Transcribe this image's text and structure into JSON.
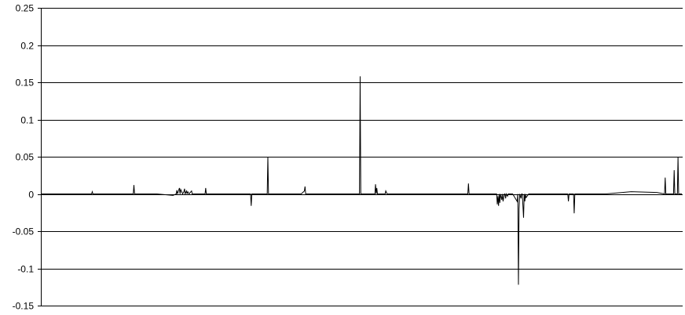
{
  "chart_data": {
    "type": "line",
    "title": "",
    "xlabel": "",
    "ylabel": "",
    "ylim": [
      -0.15,
      0.25
    ],
    "yticks": [
      -0.15,
      -0.1,
      -0.05,
      0,
      0.05,
      0.1,
      0.15,
      0.2,
      0.25
    ],
    "ytick_labels": [
      "-0.15",
      "-0.1",
      "-0.05",
      "0",
      "0.05",
      "0.1",
      "0.15",
      "0.2",
      "0.25"
    ],
    "grid": true,
    "legend": "none",
    "x_count": 1000,
    "series": [
      {
        "color": "#000000",
        "x": [
          0,
          78,
          79,
          80,
          143,
          144,
          145,
          180,
          205,
          210,
          211,
          212,
          215,
          216,
          217,
          220,
          222,
          223,
          224,
          226,
          227,
          228,
          230,
          234,
          235,
          240,
          255,
          256,
          257,
          258,
          265,
          310,
          326,
          327,
          328,
          352,
          353,
          354,
          355,
          405,
          410,
          411,
          412,
          425,
          496,
          497,
          498,
          499,
          520,
          521,
          522,
          523,
          524,
          525,
          536,
          537,
          539,
          540,
          665,
          666,
          667,
          710,
          711,
          712,
          713,
          714,
          715,
          716,
          718,
          719,
          720,
          722,
          723,
          724,
          725,
          727,
          728,
          729,
          735,
          742,
          743,
          744,
          745,
          746,
          748,
          749,
          750,
          752,
          753,
          754,
          755,
          756,
          760,
          780,
          820,
          821,
          822,
          823,
          830,
          831,
          832,
          833,
          880,
          920,
          960,
          972,
          973,
          974,
          975,
          986,
          987,
          988,
          992,
          993,
          994,
          999
        ],
        "y": [
          0.0,
          0.0,
          0.003,
          0.0,
          0.0,
          0.012,
          0.0,
          0.0,
          -0.002,
          0.0,
          0.005,
          0.0,
          0.008,
          0.0,
          0.006,
          0.0,
          0.003,
          0.007,
          0.0,
          0.004,
          0.0,
          0.003,
          0.0,
          0.004,
          0.0,
          0.0,
          0.0,
          0.008,
          0.0,
          0.0,
          0.0,
          0.0,
          0.0,
          -0.016,
          0.0,
          0.0,
          0.05,
          0.0,
          0.0,
          0.0,
          0.004,
          0.01,
          0.0,
          0.0,
          0.0,
          0.158,
          0.0,
          0.0,
          0.0,
          0.013,
          0.0,
          0.008,
          0.0,
          0.0,
          0.0,
          0.004,
          0.0,
          0.0,
          0.0,
          0.014,
          0.0,
          0.0,
          -0.014,
          -0.003,
          -0.016,
          0.0,
          -0.012,
          0.0,
          -0.008,
          0.0,
          -0.01,
          0.0,
          0.0,
          -0.006,
          0.0,
          -0.003,
          0.0,
          0.0,
          0.0,
          -0.01,
          0.0,
          -0.122,
          -0.02,
          0.0,
          -0.006,
          0.0,
          0.0,
          -0.032,
          0.0,
          -0.01,
          0.0,
          -0.005,
          0.0,
          0.0,
          0.0,
          0.0,
          -0.01,
          0.0,
          0.0,
          -0.026,
          0.0,
          0.0,
          0.0,
          0.003,
          0.002,
          0.0,
          0.022,
          0.0,
          0.0,
          0.0,
          0.032,
          0.0,
          0.0,
          0.05,
          0.0,
          0.0
        ]
      }
    ]
  }
}
